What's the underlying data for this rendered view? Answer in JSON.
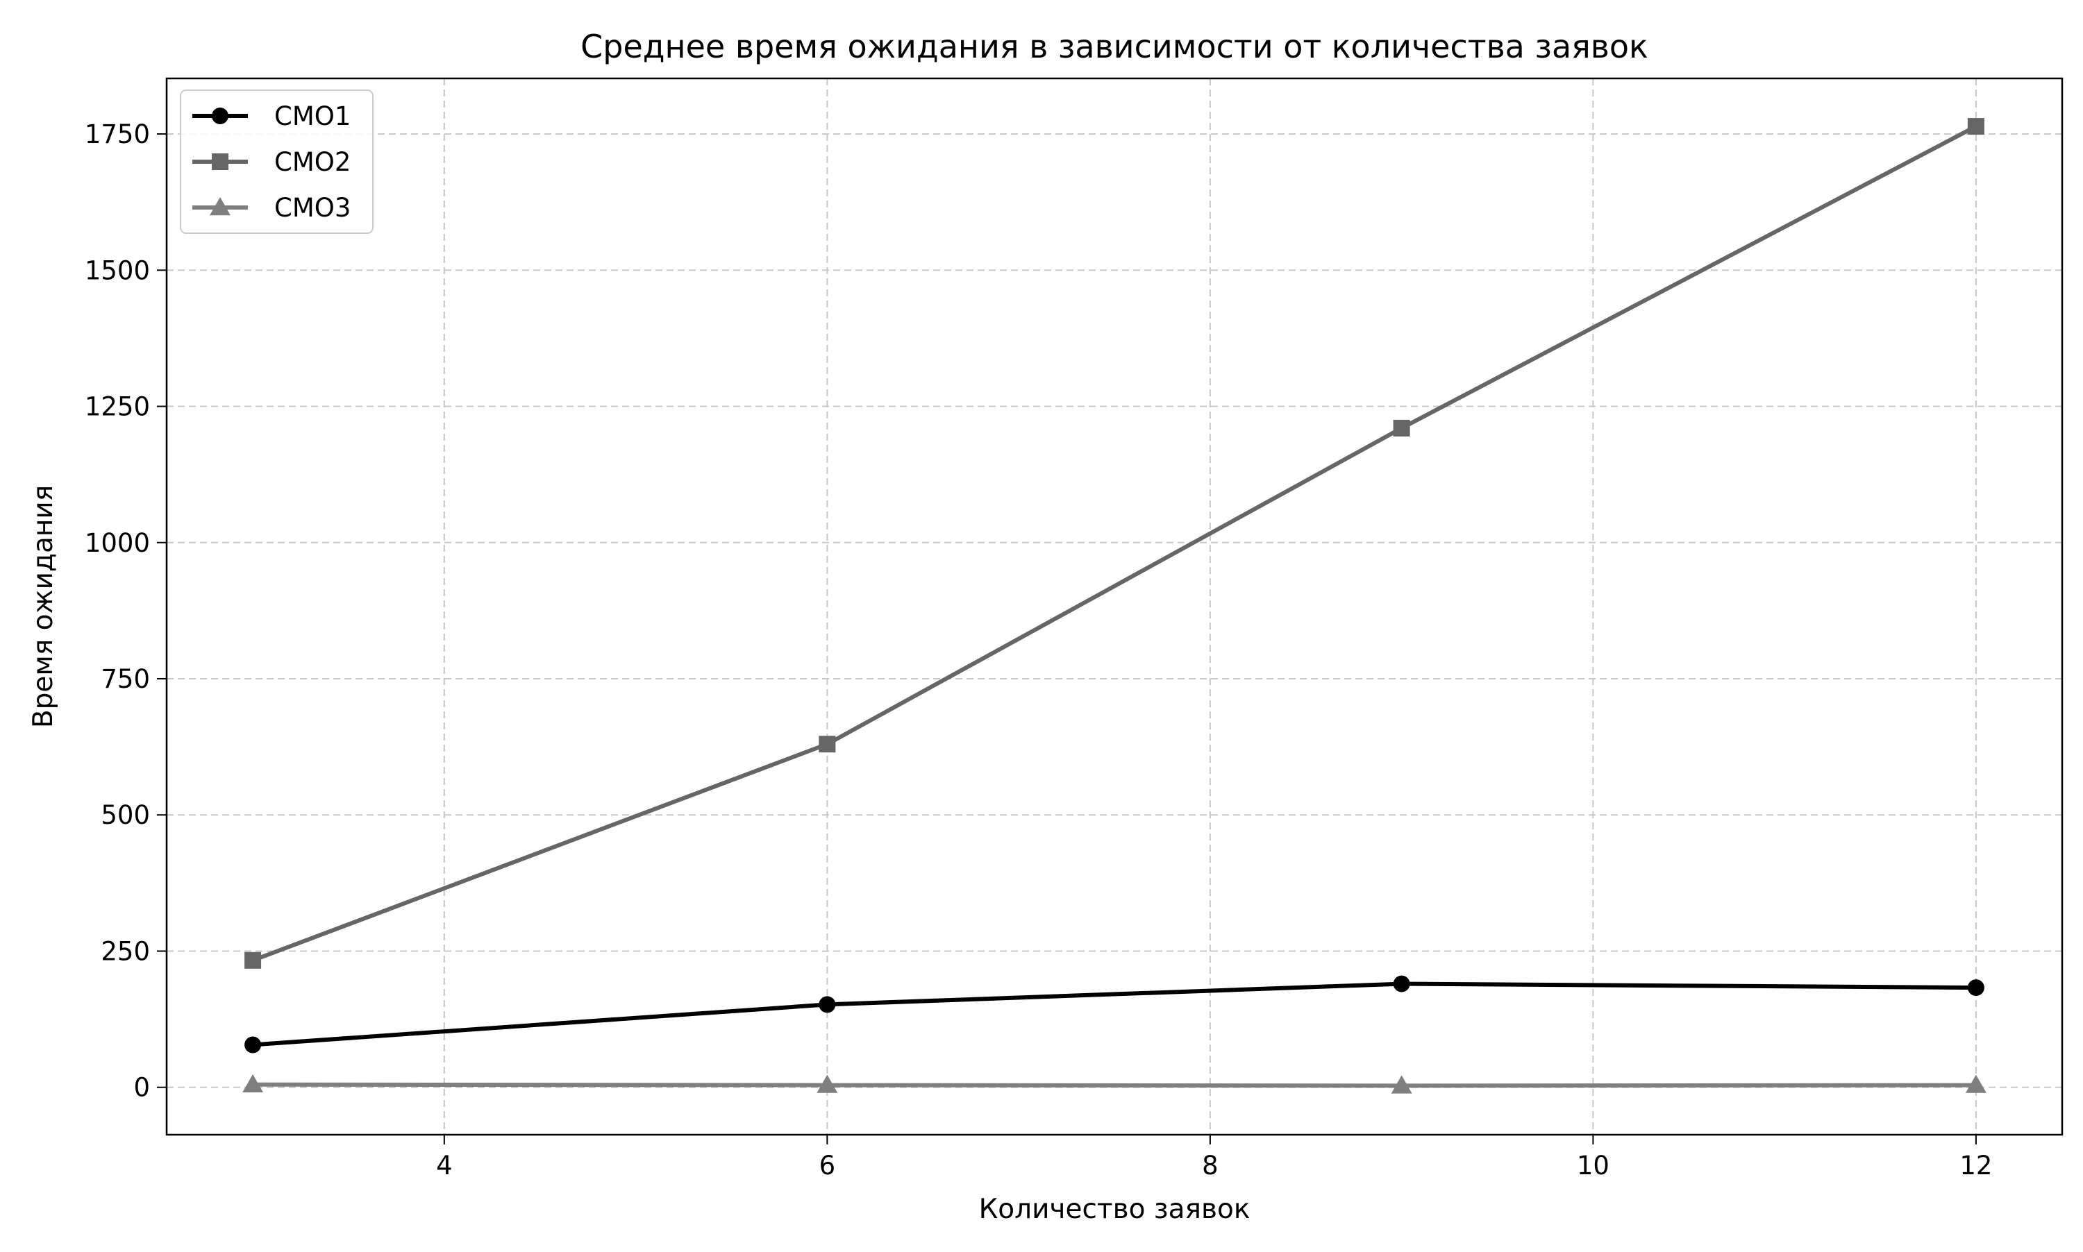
{
  "chart_data": {
    "type": "line",
    "title": "Среднее время ожидания в зависимости от количества заявок",
    "xlabel": "Количество заявок",
    "ylabel": "Время ожидания",
    "x": [
      3,
      6,
      9,
      12
    ],
    "xlim": [
      2.55,
      12.45
    ],
    "ylim": [
      -87,
      1852
    ],
    "xticks": [
      4,
      6,
      8,
      10,
      12
    ],
    "yticks": [
      0,
      250,
      500,
      750,
      1000,
      1250,
      1500,
      1750
    ],
    "grid": true,
    "legend_position": "top-left",
    "series": [
      {
        "name": "СМО1",
        "values": [
          78,
          152,
          190,
          183
        ],
        "color": "#000000",
        "marker": "circle"
      },
      {
        "name": "СМО2",
        "values": [
          233,
          630,
          1210,
          1764
        ],
        "color": "#666666",
        "marker": "square"
      },
      {
        "name": "СМО3",
        "values": [
          5,
          4,
          3,
          4
        ],
        "color": "#7f7f7f",
        "marker": "triangle"
      }
    ]
  }
}
